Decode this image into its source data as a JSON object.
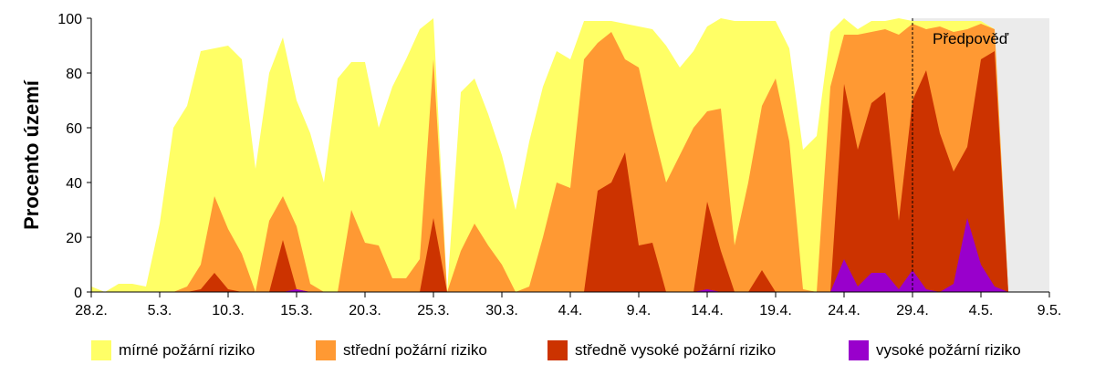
{
  "chart_data": {
    "type": "area",
    "stacked": true,
    "ylabel": "Procento území",
    "ylim": [
      0,
      100
    ],
    "y_ticks": [
      "0",
      "20",
      "40",
      "60",
      "80",
      "100"
    ],
    "x_ticks": [
      "28.2.",
      "5.3.",
      "10.3.",
      "15.3.",
      "20.3.",
      "25.3.",
      "30.3.",
      "4.4.",
      "9.4.",
      "14.4.",
      "19.4.",
      "24.4.",
      "29.4.",
      "4.5.",
      "9.5."
    ],
    "x_range_days": [
      0,
      70
    ],
    "forecast_label": "Předpověď",
    "forecast_start_day": 60,
    "grid": "horizontal",
    "legend_position": "bottom",
    "series": [
      {
        "name": "vysoké požární riziko",
        "color": "#9900cc",
        "values": [
          0,
          0,
          0,
          0,
          0,
          0,
          0,
          0,
          0,
          0,
          0,
          0,
          0,
          0,
          0,
          1,
          0,
          0,
          0,
          0,
          0,
          0,
          0,
          0,
          0,
          0,
          0,
          0,
          0,
          0,
          0,
          0,
          0,
          0,
          0,
          0,
          0,
          0,
          0,
          0,
          0,
          0,
          0,
          0,
          0,
          1,
          0,
          0,
          0,
          0,
          0,
          0,
          0,
          0,
          0,
          12,
          2,
          7,
          7,
          1,
          8,
          1,
          0,
          3,
          27,
          10,
          2,
          0,
          0,
          0,
          0
        ]
      },
      {
        "name": "středně vysoké požární riziko",
        "color": "#cc3300",
        "values": [
          0,
          0,
          0,
          0,
          0,
          0,
          0,
          0,
          0,
          0,
          0,
          0,
          0,
          0,
          0,
          1,
          0,
          0,
          0,
          0,
          0,
          0,
          0,
          0,
          0,
          0,
          0,
          0,
          0,
          0,
          0,
          0,
          0,
          0,
          0,
          0,
          0,
          0,
          0,
          0,
          0,
          0,
          0,
          0,
          0,
          1,
          0,
          0,
          0,
          0,
          0,
          0,
          0,
          0,
          0,
          64,
          50,
          62,
          66,
          25,
          62,
          80,
          58,
          41,
          26,
          75,
          86,
          0,
          0,
          0,
          0
        ]
      },
      {
        "name": "střední požární riziko",
        "color": "#ff9933",
        "values": [
          0,
          0,
          0,
          0,
          0,
          0,
          0,
          0,
          0,
          0,
          0,
          0,
          0,
          0,
          0,
          1,
          0,
          0,
          0,
          0,
          0,
          0,
          0,
          0,
          0,
          0,
          0,
          0,
          0,
          0,
          0,
          0,
          0,
          0,
          0,
          0,
          0,
          0,
          0,
          0,
          0,
          0,
          0,
          0,
          0,
          1,
          0,
          0,
          0,
          0,
          0,
          0,
          0,
          0,
          0,
          18,
          42,
          26,
          23,
          68,
          28,
          15,
          39,
          51,
          43,
          13,
          8,
          0,
          0,
          0,
          0
        ]
      },
      {
        "name": "mírné požární riziko",
        "color": "#ffff66",
        "values": [
          2,
          0,
          3,
          3,
          2,
          25,
          60,
          68,
          88,
          89,
          90,
          85,
          45,
          80,
          93,
          70,
          58,
          40,
          78,
          84,
          84,
          60,
          75,
          85,
          96,
          100,
          0,
          73,
          78,
          65,
          50,
          30,
          55,
          75,
          88,
          85,
          99,
          99,
          99,
          98,
          97,
          96,
          90,
          82,
          88,
          97,
          100,
          99,
          99,
          99,
          99,
          89,
          52,
          57,
          95,
          6,
          2,
          4,
          3,
          6,
          1,
          3,
          2,
          4,
          3,
          1,
          0,
          0,
          0,
          0,
          0
        ]
      }
    ],
    "mid_area_values": {
      "description": "cumulative orange+red+purple boundary (0–60)",
      "values": [
        0,
        0,
        0,
        0,
        0,
        0,
        0,
        2,
        10,
        35,
        23,
        14,
        0,
        26,
        35,
        24,
        3,
        0,
        0,
        30,
        18,
        17,
        5,
        5,
        12,
        85,
        0,
        15,
        25,
        17,
        10,
        0,
        2,
        20,
        40,
        38,
        85,
        91,
        95,
        85,
        82,
        60,
        40,
        50,
        60,
        66,
        67,
        17,
        40,
        68,
        78,
        55,
        1,
        0,
        75
      ]
    },
    "red_top_values": {
      "values": [
        0,
        0,
        0,
        0,
        0,
        0,
        0,
        0,
        1,
        7,
        1,
        0,
        0,
        0,
        19,
        1,
        0,
        0,
        0,
        0,
        0,
        0,
        0,
        0,
        0,
        27,
        0,
        0,
        0,
        0,
        0,
        0,
        0,
        0,
        0,
        0,
        0,
        37,
        40,
        51,
        17,
        18,
        0,
        0,
        0,
        33,
        15,
        0,
        0,
        8,
        0,
        0,
        0,
        0,
        0
      ]
    }
  }
}
